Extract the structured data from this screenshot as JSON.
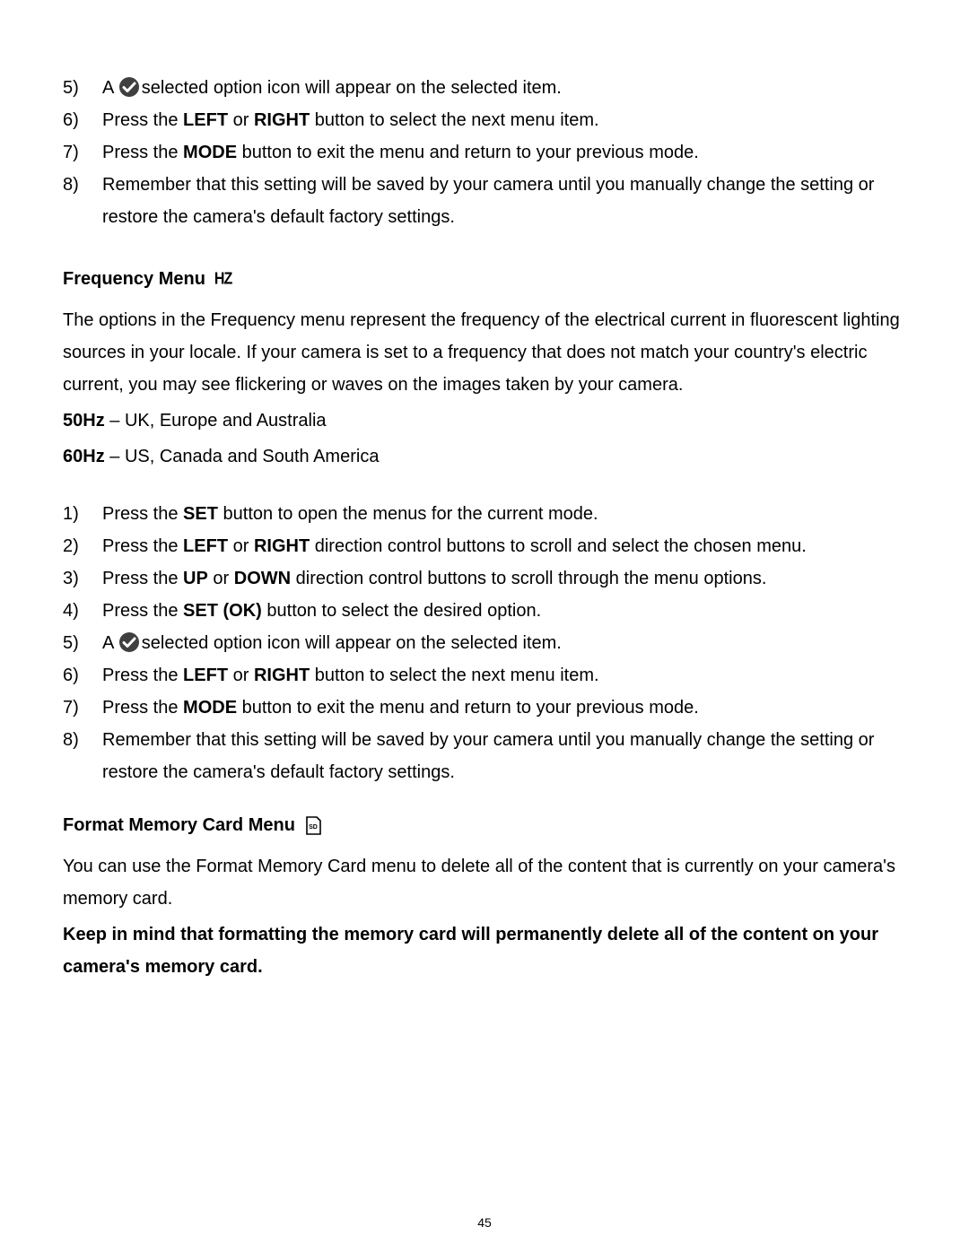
{
  "page_number": "45",
  "top_steps": [
    {
      "n": "5)",
      "a_prefix": "A ",
      "has_check_icon": true,
      "post_icon": "selected option icon will appear on the selected item."
    },
    {
      "n": "6)",
      "parts": [
        "Press the ",
        {
          "b": "LEFT"
        },
        " or ",
        {
          "b": "RIGHT"
        },
        " button to select the next menu item."
      ]
    },
    {
      "n": "7)",
      "parts": [
        "Press the ",
        {
          "b": "MODE"
        },
        " button to exit the menu and return to your previous mode."
      ]
    },
    {
      "n": "8)",
      "parts": [
        "Remember that this setting will be saved by your camera until you manually change the setting or restore the camera's default factory settings."
      ]
    }
  ],
  "freq_section": {
    "title": "Frequency Menu",
    "icon_label": "HZ",
    "intro": "The options in the Frequency menu represent the frequency of the electrical current in fluorescent lighting sources in your locale. If your camera is set to a frequency that does not match your country's electric current, you may see flickering or waves on the images taken by your camera.",
    "lines": [
      [
        {
          "b": "50Hz"
        },
        " – UK, Europe and Australia"
      ],
      [
        {
          "b": "60Hz"
        },
        " – US, Canada and South America"
      ]
    ],
    "steps": [
      {
        "n": "1)",
        "parts": [
          "Press the ",
          {
            "b": "SET"
          },
          " button to open the menus for the current mode."
        ]
      },
      {
        "n": "2)",
        "parts": [
          "Press the ",
          {
            "b": "LEFT"
          },
          " or ",
          {
            "b": "RIGHT"
          },
          " direction control buttons to scroll and select the chosen menu."
        ]
      },
      {
        "n": "3)",
        "parts": [
          "Press the ",
          {
            "b": "UP"
          },
          " or ",
          {
            "b": "DOWN"
          },
          " direction control buttons to scroll through the menu options."
        ]
      },
      {
        "n": "4)",
        "parts": [
          "Press the ",
          {
            "b": "SET (OK)"
          },
          " button to select the desired option."
        ]
      },
      {
        "n": "5)",
        "a_prefix": "A ",
        "has_check_icon": true,
        "post_icon": "selected option icon will appear on the selected item."
      },
      {
        "n": "6)",
        "parts": [
          "Press the ",
          {
            "b": "LEFT"
          },
          " or ",
          {
            "b": "RIGHT"
          },
          " button to select the next menu item."
        ]
      },
      {
        "n": "7)",
        "parts": [
          "Press the ",
          {
            "b": "MODE"
          },
          " button to exit the menu and return to your previous mode."
        ]
      },
      {
        "n": "8)",
        "parts": [
          "Remember that this setting will be saved by your camera until you manually change the setting or restore the camera's default factory settings."
        ]
      }
    ]
  },
  "format_section": {
    "title": "Format Memory Card Menu",
    "icon_label": "SD",
    "intro": "You can use the Format Memory Card menu to delete all of the content that is currently on your camera's memory card.",
    "warning": "Keep in mind that formatting the memory card will permanently delete all of the content on your camera's memory card."
  },
  "icons": {
    "check": {
      "bg": "#3f3f3f",
      "fg": "#ffffff"
    },
    "sd": {
      "stroke": "#000000",
      "text": "SD"
    }
  }
}
